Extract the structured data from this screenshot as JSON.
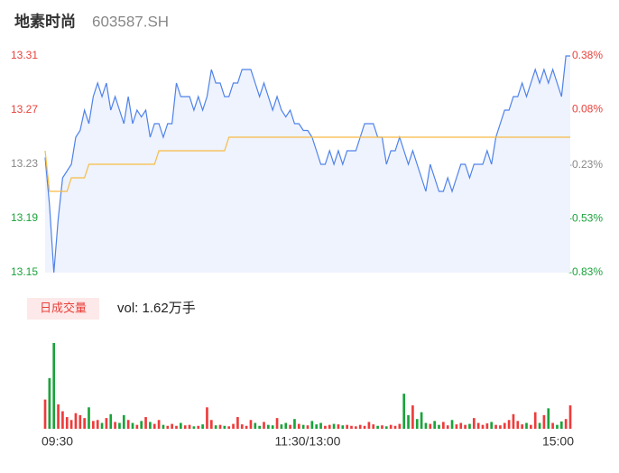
{
  "header": {
    "name": "地素时尚",
    "code": "603587.SH"
  },
  "chart_data": [
    {
      "type": "line",
      "x": [
        0,
        2,
        4,
        6,
        8,
        10,
        12,
        14,
        16,
        18,
        20,
        22,
        24,
        26,
        28,
        30,
        32,
        34,
        36,
        38,
        40,
        42,
        44,
        46,
        48,
        50,
        52,
        54,
        56,
        58,
        60,
        62,
        64,
        66,
        68,
        70,
        72,
        74,
        76,
        78,
        80,
        82,
        84,
        86,
        88,
        90,
        92,
        94,
        96,
        98,
        100,
        102,
        104,
        106,
        108,
        110,
        112,
        114,
        116,
        118,
        120,
        122,
        124,
        126,
        128,
        130,
        132,
        134,
        136,
        138,
        140,
        142,
        144,
        146,
        148,
        150,
        152,
        154,
        156,
        158,
        160,
        162,
        164,
        166,
        168,
        170,
        172,
        174,
        176,
        178,
        180,
        182,
        184,
        186,
        188,
        190,
        192,
        194,
        196,
        198,
        200,
        202,
        204,
        206,
        208,
        210,
        212,
        214,
        216,
        218,
        220,
        222,
        224,
        226,
        228,
        230,
        232,
        234,
        236,
        238,
        240
      ],
      "series": [
        {
          "color": "#4f82ea",
          "values": [
            13.235,
            13.2,
            13.15,
            13.19,
            13.22,
            13.225,
            13.23,
            13.25,
            13.255,
            13.27,
            13.26,
            13.28,
            13.29,
            13.28,
            13.29,
            13.27,
            13.28,
            13.27,
            13.26,
            13.28,
            13.26,
            13.27,
            13.265,
            13.27,
            13.25,
            13.26,
            13.26,
            13.25,
            13.26,
            13.26,
            13.29,
            13.28,
            13.28,
            13.28,
            13.27,
            13.28,
            13.27,
            13.28,
            13.3,
            13.29,
            13.29,
            13.28,
            13.28,
            13.29,
            13.29,
            13.3,
            13.3,
            13.3,
            13.29,
            13.28,
            13.29,
            13.28,
            13.27,
            13.28,
            13.27,
            13.265,
            13.27,
            13.26,
            13.26,
            13.255,
            13.255,
            13.25,
            13.24,
            13.23,
            13.23,
            13.24,
            13.23,
            13.24,
            13.23,
            13.24,
            13.24,
            13.24,
            13.25,
            13.26,
            13.26,
            13.26,
            13.25,
            13.25,
            13.23,
            13.24,
            13.24,
            13.25,
            13.24,
            13.23,
            13.24,
            13.23,
            13.22,
            13.21,
            13.23,
            13.22,
            13.21,
            13.21,
            13.22,
            13.21,
            13.22,
            13.23,
            13.23,
            13.22,
            13.23,
            13.23,
            13.23,
            13.24,
            13.23,
            13.25,
            13.26,
            13.27,
            13.27,
            13.28,
            13.28,
            13.29,
            13.28,
            13.29,
            13.3,
            13.29,
            13.3,
            13.29,
            13.3,
            13.29,
            13.28,
            13.31,
            13.31
          ]
        },
        {
          "color": "#f7bb45",
          "x": [
            0,
            2,
            10,
            12,
            18,
            20,
            50,
            52,
            82,
            84,
            240
          ],
          "values": [
            13.24,
            13.21,
            13.21,
            13.22,
            13.22,
            13.23,
            13.23,
            13.24,
            13.24,
            13.25,
            13.25
          ]
        }
      ],
      "xlim": [
        0,
        240
      ],
      "ylim": [
        13.15,
        13.31
      ],
      "yticks": [
        13.15,
        13.19,
        13.23,
        13.27,
        13.31
      ],
      "y2lim": [
        -0.83,
        0.38
      ],
      "y2ticks": [
        {
          "value": -0.83,
          "label": "-0.83%"
        },
        {
          "value": -0.53,
          "label": "-0.53%"
        },
        {
          "value": -0.23,
          "label": "-0.23%"
        },
        {
          "value": 0.08,
          "label": "0.08%"
        },
        {
          "value": 0.38,
          "label": "0.38%"
        }
      ]
    },
    {
      "type": "bar",
      "label": "日成交量",
      "annotation": "vol: 1.62万手",
      "values": [
        300,
        520,
        880,
        250,
        180,
        120,
        90,
        160,
        140,
        110,
        220,
        80,
        90,
        60,
        110,
        150,
        70,
        60,
        140,
        90,
        60,
        40,
        80,
        120,
        70,
        50,
        90,
        40,
        30,
        50,
        30,
        60,
        35,
        40,
        25,
        30,
        45,
        220,
        90,
        35,
        40,
        30,
        25,
        50,
        120,
        45,
        30,
        90,
        60,
        30,
        70,
        40,
        35,
        110,
        45,
        60,
        40,
        100,
        50,
        40,
        35,
        80,
        45,
        60,
        30,
        40,
        50,
        45,
        35,
        40,
        30,
        25,
        40,
        30,
        70,
        45,
        30,
        35,
        25,
        40,
        30,
        50,
        360,
        140,
        240,
        100,
        170,
        60,
        50,
        80,
        40,
        70,
        35,
        90,
        45,
        60,
        40,
        50,
        110,
        60,
        40,
        55,
        70,
        40,
        35,
        60,
        90,
        150,
        80,
        45,
        60,
        40,
        170,
        60,
        140,
        210,
        60,
        40,
        75,
        100,
        240
      ],
      "up_color": "#ee3b3b",
      "down_color": "#1aa33b",
      "xticks": [
        {
          "value": 0,
          "label": "09:30"
        },
        {
          "value": 120,
          "label": "11:30/13:00"
        },
        {
          "value": 240,
          "label": "15:00"
        }
      ]
    }
  ]
}
